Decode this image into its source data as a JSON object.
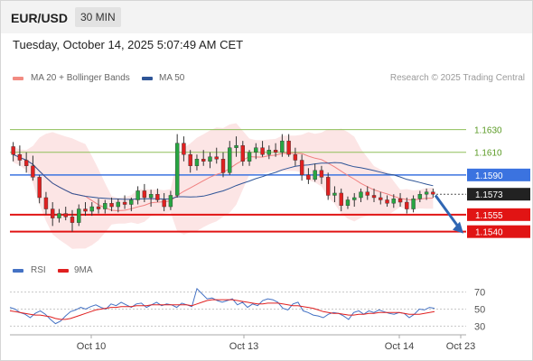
{
  "header": {
    "pair": "EUR/USD",
    "timeframe": "30 MIN"
  },
  "timestamp": "Tuesday, October 14, 2025 5:07:49 AM CET",
  "legend": {
    "ma20": {
      "label": "MA 20 + Bollinger Bands",
      "color": "#f28b82"
    },
    "ma50": {
      "label": "MA 50",
      "color": "#2f5597"
    },
    "rsi": {
      "label": "RSI",
      "color": "#4472c4"
    },
    "ma9": {
      "label": "9MA",
      "color": "#e02020"
    }
  },
  "credit": "Research © 2025 Trading Central",
  "chart_data": [
    {
      "type": "candlestick",
      "title": "",
      "x_ticks": [
        "Oct 10",
        "Oct 13",
        "Oct 14",
        "Oct 23"
      ],
      "ylim": [
        1.1527,
        1.1644
      ],
      "levels": [
        {
          "value": 1.163,
          "label": "1.1630",
          "kind": "resistance",
          "color": "#8fbf5a"
        },
        {
          "value": 1.161,
          "label": "1.1610",
          "kind": "resistance",
          "color": "#8fbf5a"
        },
        {
          "value": 1.159,
          "label": "1.1590",
          "kind": "pivot",
          "color": "#3b73e0"
        },
        {
          "value": 1.1555,
          "label": "1.1555",
          "kind": "support",
          "color": "#e11414"
        },
        {
          "value": 1.154,
          "label": "1.1540",
          "kind": "support",
          "color": "#e11414"
        }
      ],
      "last_price": {
        "value": 1.1573,
        "label": "1.1573"
      },
      "forecast_arrow": {
        "from": 1.1572,
        "to": 1.154,
        "color": "#2f66b3"
      },
      "ohlc": [
        [
          1.1615,
          1.1619,
          1.1602,
          1.1608
        ],
        [
          1.1608,
          1.1616,
          1.1598,
          1.1603
        ],
        [
          1.1603,
          1.161,
          1.1592,
          1.1598
        ],
        [
          1.1598,
          1.1607,
          1.1585,
          1.1588
        ],
        [
          1.1588,
          1.159,
          1.1565,
          1.157
        ],
        [
          1.157,
          1.1575,
          1.1555,
          1.156
        ],
        [
          1.156,
          1.1566,
          1.1545,
          1.1552
        ],
        [
          1.1552,
          1.156,
          1.1548,
          1.1556
        ],
        [
          1.1556,
          1.1562,
          1.155,
          1.1553
        ],
        [
          1.1553,
          1.1559,
          1.154,
          1.1548
        ],
        [
          1.1548,
          1.1564,
          1.1545,
          1.156
        ],
        [
          1.156,
          1.1566,
          1.1554,
          1.1558
        ],
        [
          1.1558,
          1.1566,
          1.1554,
          1.1562
        ],
        [
          1.1562,
          1.1569,
          1.1556,
          1.156
        ],
        [
          1.156,
          1.1568,
          1.1556,
          1.1565
        ],
        [
          1.1565,
          1.157,
          1.1558,
          1.1562
        ],
        [
          1.1562,
          1.1569,
          1.1557,
          1.1566
        ],
        [
          1.1566,
          1.1572,
          1.156,
          1.1564
        ],
        [
          1.1564,
          1.157,
          1.1558,
          1.1568
        ],
        [
          1.1568,
          1.158,
          1.1564,
          1.1576
        ],
        [
          1.1576,
          1.1582,
          1.1566,
          1.157
        ],
        [
          1.157,
          1.1577,
          1.1562,
          1.1573
        ],
        [
          1.1573,
          1.1578,
          1.1566,
          1.1568
        ],
        [
          1.1568,
          1.1574,
          1.1558,
          1.1562
        ],
        [
          1.1562,
          1.1576,
          1.1559,
          1.1572
        ],
        [
          1.1572,
          1.1626,
          1.157,
          1.1618
        ],
        [
          1.1618,
          1.1624,
          1.1602,
          1.1608
        ],
        [
          1.1608,
          1.1612,
          1.1592,
          1.1598
        ],
        [
          1.1598,
          1.1608,
          1.1594,
          1.1604
        ],
        [
          1.1604,
          1.1612,
          1.1598,
          1.1602
        ],
        [
          1.1602,
          1.161,
          1.1596,
          1.1606
        ],
        [
          1.1606,
          1.1614,
          1.16,
          1.1604
        ],
        [
          1.1604,
          1.161,
          1.1588,
          1.1592
        ],
        [
          1.1592,
          1.162,
          1.159,
          1.1614
        ],
        [
          1.1614,
          1.1624,
          1.1606,
          1.1616
        ],
        [
          1.1616,
          1.162,
          1.1598,
          1.1602
        ],
        [
          1.1602,
          1.1612,
          1.1598,
          1.161
        ],
        [
          1.161,
          1.1618,
          1.1604,
          1.1614
        ],
        [
          1.1614,
          1.162,
          1.1606,
          1.1608
        ],
        [
          1.1608,
          1.1616,
          1.1604,
          1.1612
        ],
        [
          1.1612,
          1.1618,
          1.1606,
          1.161
        ],
        [
          1.161,
          1.1626,
          1.1606,
          1.162
        ],
        [
          1.162,
          1.1626,
          1.1606,
          1.1608
        ],
        [
          1.1608,
          1.1614,
          1.1598,
          1.1603
        ],
        [
          1.1603,
          1.1608,
          1.1585,
          1.159
        ],
        [
          1.159,
          1.1596,
          1.1582,
          1.1586
        ],
        [
          1.1586,
          1.16,
          1.1584,
          1.1594
        ],
        [
          1.1594,
          1.1598,
          1.1582,
          1.1588
        ],
        [
          1.1588,
          1.1592,
          1.1568,
          1.1572
        ],
        [
          1.1572,
          1.158,
          1.1566,
          1.1574
        ],
        [
          1.1574,
          1.1578,
          1.1558,
          1.1563
        ],
        [
          1.1563,
          1.1571,
          1.156,
          1.1568
        ],
        [
          1.1568,
          1.1574,
          1.1562,
          1.157
        ],
        [
          1.157,
          1.1578,
          1.1566,
          1.1575
        ],
        [
          1.1575,
          1.158,
          1.1568,
          1.1572
        ],
        [
          1.1572,
          1.1578,
          1.1566,
          1.157
        ],
        [
          1.157,
          1.1575,
          1.1564,
          1.1568
        ],
        [
          1.1568,
          1.1572,
          1.1562,
          1.1565
        ],
        [
          1.1565,
          1.1573,
          1.1561,
          1.1569
        ],
        [
          1.1569,
          1.1574,
          1.1562,
          1.1566
        ],
        [
          1.1566,
          1.157,
          1.1556,
          1.156
        ],
        [
          1.156,
          1.1572,
          1.1557,
          1.1569
        ],
        [
          1.1569,
          1.1576,
          1.1566,
          1.1573
        ],
        [
          1.1573,
          1.1578,
          1.1568,
          1.1575
        ],
        [
          1.1575,
          1.1578,
          1.157,
          1.1573
        ]
      ]
    },
    {
      "type": "line",
      "title": "",
      "ylim": [
        22,
        78
      ],
      "y_ticks": [
        70,
        50,
        30
      ],
      "series": [
        {
          "name": "RSI",
          "color": "#4472c4",
          "values": [
            52,
            50,
            46,
            44,
            40,
            45,
            48,
            44,
            38,
            33,
            36,
            42,
            47,
            49,
            52,
            50,
            53,
            55,
            52,
            50,
            56,
            54,
            58,
            55,
            52,
            56,
            57,
            52,
            55,
            58,
            54,
            56,
            55,
            52,
            57,
            55,
            53,
            74,
            68,
            62,
            63,
            60,
            58,
            60,
            62,
            55,
            58,
            52,
            56,
            54,
            60,
            62,
            61,
            58,
            51,
            49,
            56,
            58,
            48,
            46,
            43,
            42,
            40,
            44,
            46,
            45,
            42,
            38,
            46,
            48,
            44,
            48,
            46,
            49,
            47,
            45,
            44,
            46,
            45,
            40,
            44,
            50,
            49,
            52,
            51
          ]
        },
        {
          "name": "9MA",
          "color": "#e02020",
          "values": [
            48,
            47,
            46,
            45,
            44,
            43,
            43,
            42,
            41,
            39,
            38,
            38,
            39,
            41,
            43,
            45,
            47,
            49,
            50,
            51,
            52,
            52,
            53,
            53,
            53,
            54,
            54,
            54,
            55,
            55,
            55,
            55,
            55,
            55,
            55,
            55,
            54,
            56,
            58,
            60,
            61,
            61,
            61,
            61,
            61,
            60,
            59,
            58,
            57,
            56,
            56,
            57,
            57,
            57,
            56,
            55,
            54,
            54,
            53,
            52,
            51,
            49,
            47,
            46,
            45,
            45,
            44,
            43,
            43,
            44,
            44,
            45,
            45,
            46,
            46,
            46,
            46,
            46,
            45,
            44,
            44,
            44,
            45,
            46,
            47
          ]
        }
      ]
    }
  ]
}
